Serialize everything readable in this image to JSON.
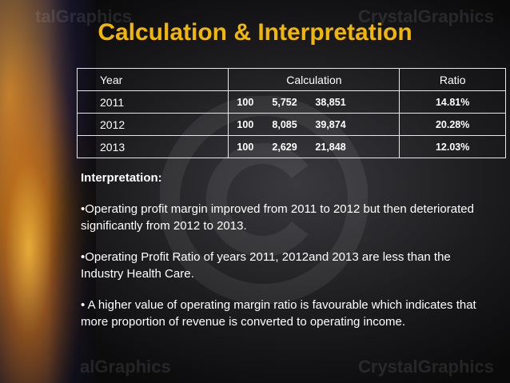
{
  "watermark": {
    "brand": "CrystalGraphics",
    "brand_partial": "talGraphics",
    "brand_partial2": "alGraphics"
  },
  "title": "Calculation & Interpretation",
  "table": {
    "headers": {
      "year": "Year",
      "calculation": "Calculation",
      "ratio": "Ratio"
    },
    "rows": [
      {
        "year": "2011",
        "calc": [
          "100",
          "5,752",
          "38,851"
        ],
        "ratio": "14.81%"
      },
      {
        "year": "2012",
        "calc": [
          "100",
          "8,085",
          "39,874"
        ],
        "ratio": "20.28%"
      },
      {
        "year": "2013",
        "calc": [
          "100",
          "2,629",
          "21,848"
        ],
        "ratio": "12.03%"
      }
    ]
  },
  "interpretation": {
    "heading": "Interpretation:",
    "points": [
      "•Operating profit margin improved from 2011 to 2012 but then deteriorated significantly from 2012 to 2013.",
      "•Operating Profit Ratio of years 2011, 2012and 2013 are less than the Industry Health Care.",
      "• A higher value of operating margin ratio is favourable which indicates that more proportion of revenue is converted to operating income."
    ]
  },
  "colors": {
    "title": "#f2b705",
    "text": "#ffffff",
    "border": "#e8e8e8",
    "background": "#1d1d20"
  }
}
